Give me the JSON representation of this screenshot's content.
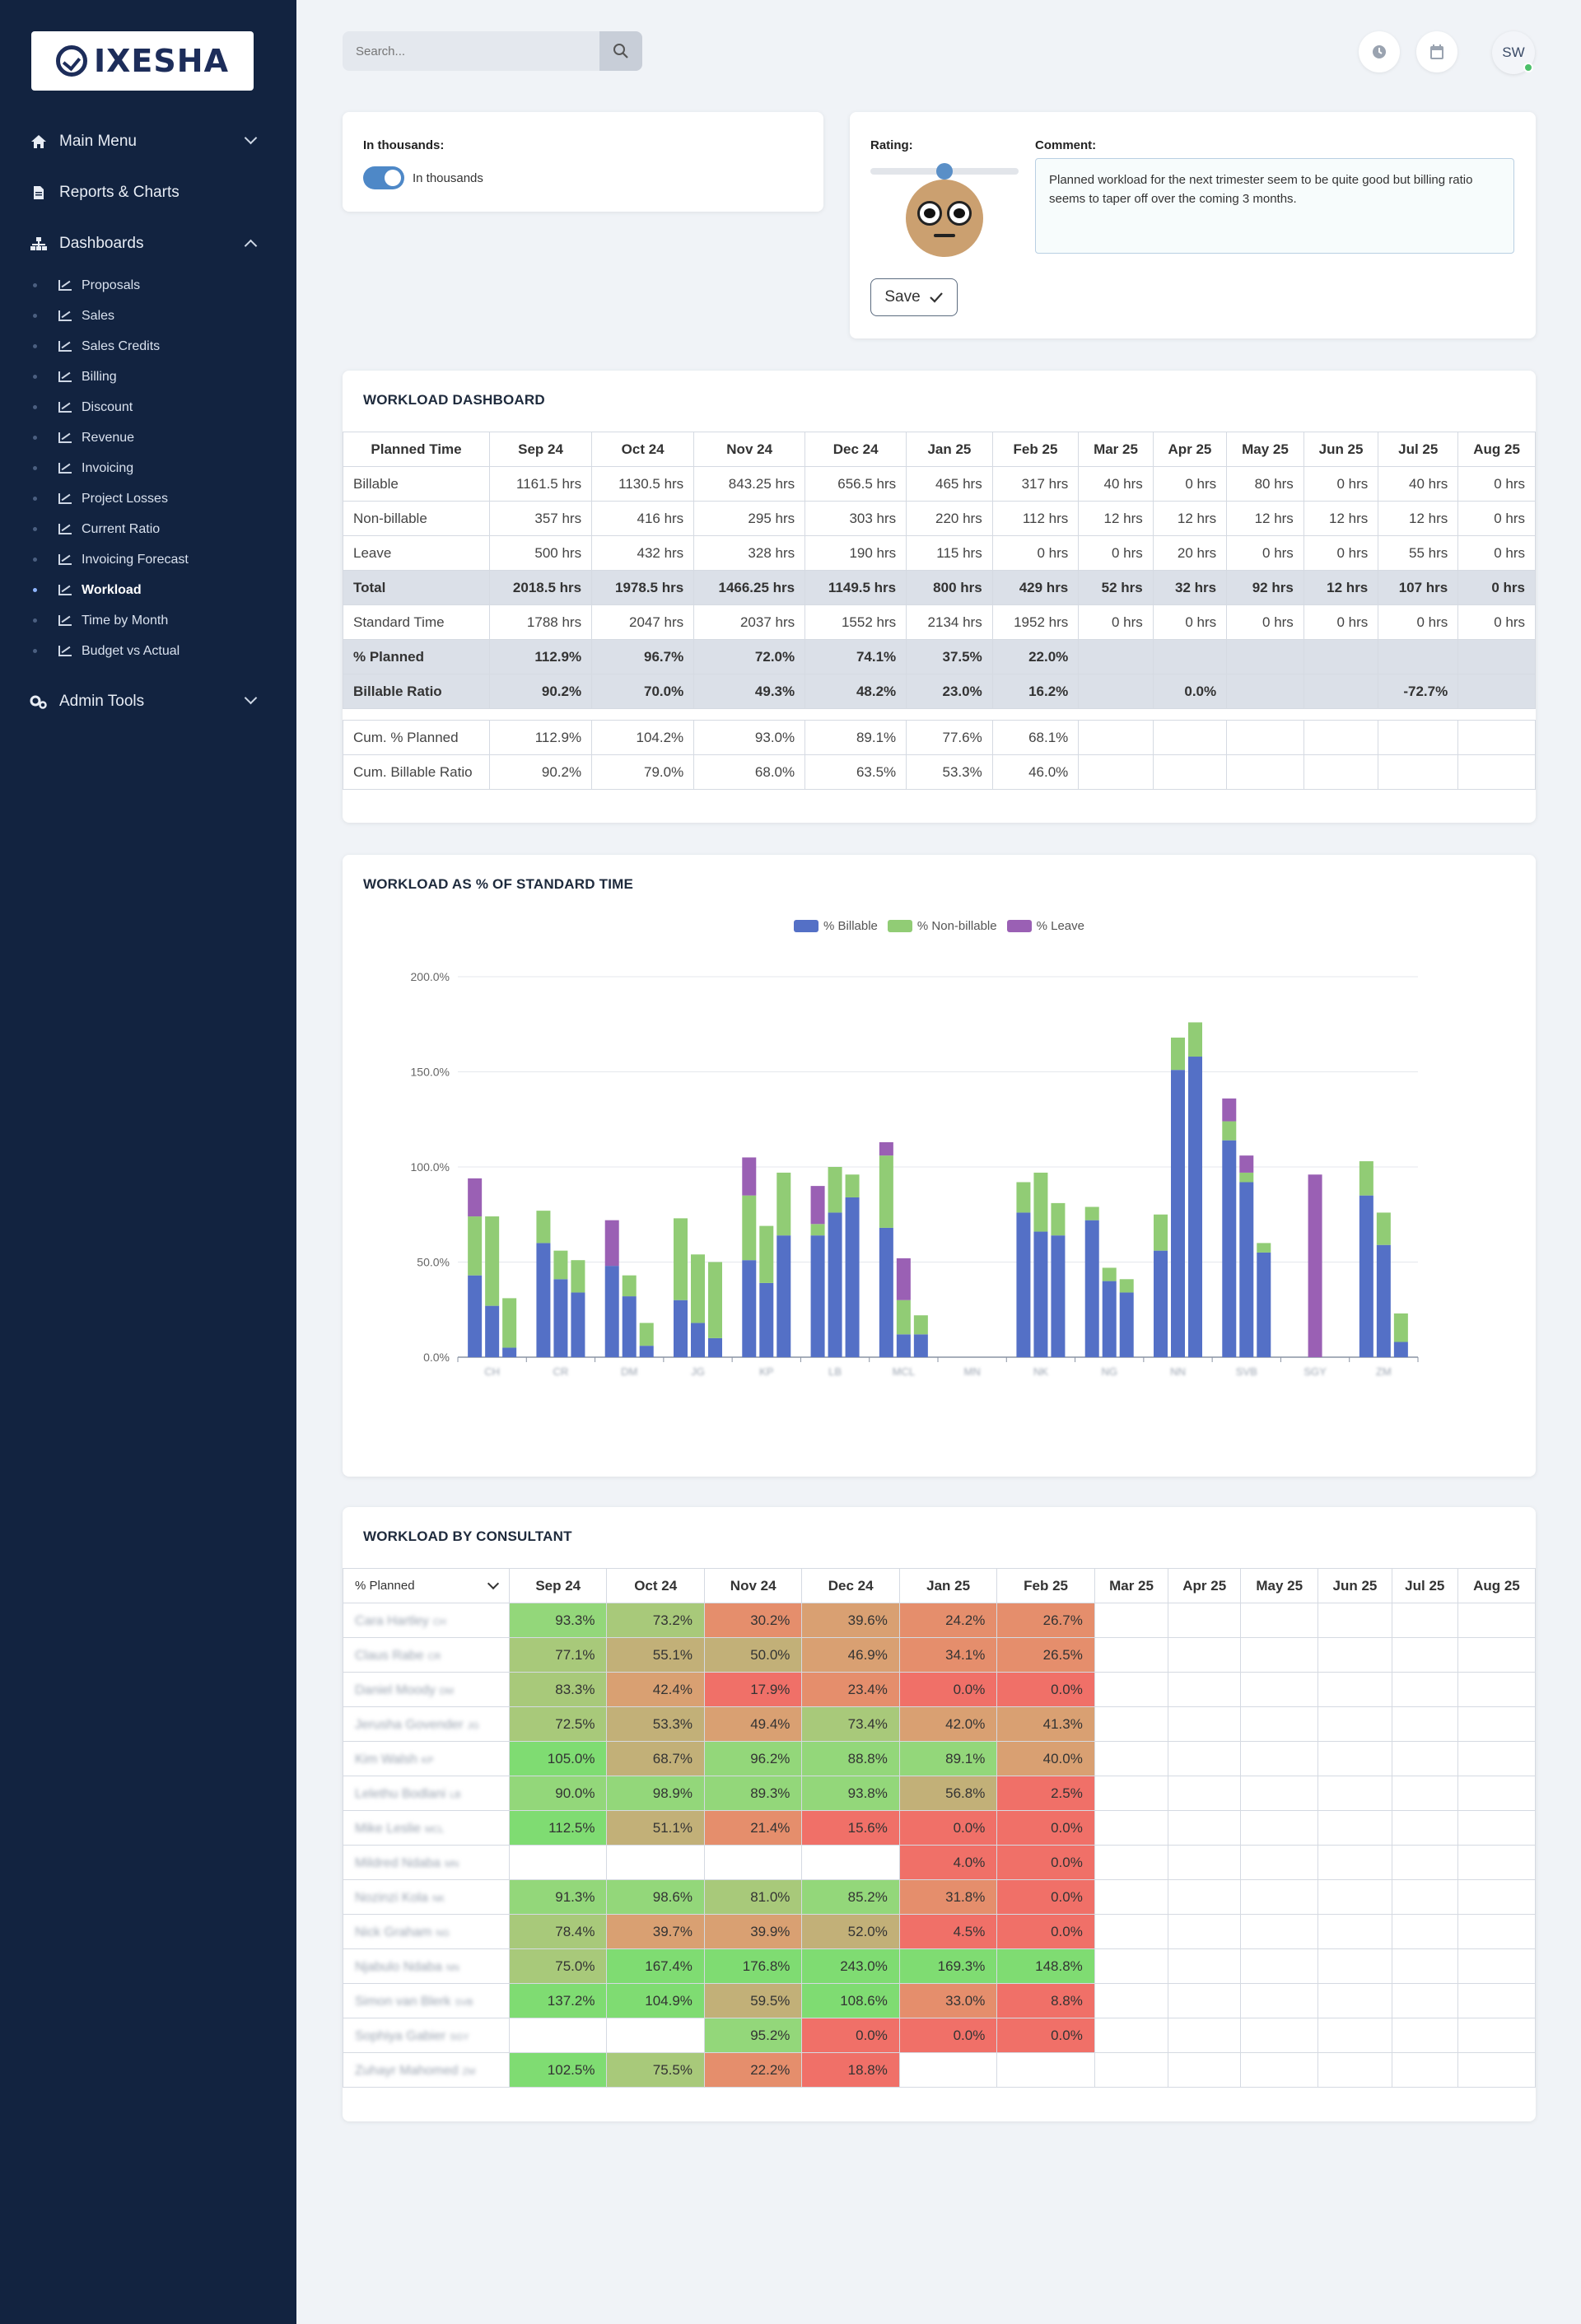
{
  "brand": {
    "name": "IXESHA"
  },
  "sidebar": {
    "groups": [
      {
        "label": "Main Menu",
        "icon": "home-icon"
      },
      {
        "label": "Reports & Charts",
        "icon": "document-icon"
      },
      {
        "label": "Dashboards",
        "icon": "sitemap-icon"
      },
      {
        "label": "Admin Tools",
        "icon": "gears-icon"
      }
    ],
    "dashboards": [
      "Proposals",
      "Sales",
      "Sales Credits",
      "Billing",
      "Discount",
      "Revenue",
      "Invoicing",
      "Project Losses",
      "Current Ratio",
      "Invoicing Forecast",
      "Workload",
      "Time by Month",
      "Budget vs Actual"
    ],
    "active": "Workload"
  },
  "topbar": {
    "search_placeholder": "Search...",
    "avatar_initials": "SW"
  },
  "settings": {
    "label": "In thousands:",
    "toggle_label": "In thousands",
    "toggle_on": true
  },
  "rating": {
    "label": "Rating:",
    "value_fraction": 0.5,
    "comment_label": "Comment:",
    "comment": "Planned workload for the next trimester seem to be quite good but billing ratio seems to taper off over the coming 3 months.",
    "save_label": "Save"
  },
  "workload_dashboard": {
    "title": "WORKLOAD DASHBOARD",
    "corner": "Planned Time",
    "months": [
      "Sep 24",
      "Oct 24",
      "Nov 24",
      "Dec 24",
      "Jan 25",
      "Feb 25",
      "Mar 25",
      "Apr 25",
      "May 25",
      "Jun 25",
      "Jul 25",
      "Aug 25"
    ],
    "rows": [
      {
        "label": "Billable",
        "style": "normal",
        "values": [
          "1161.5 hrs",
          "1130.5 hrs",
          "843.25 hrs",
          "656.5 hrs",
          "465 hrs",
          "317 hrs",
          "40 hrs",
          "0 hrs",
          "80 hrs",
          "0 hrs",
          "40 hrs",
          "0 hrs"
        ]
      },
      {
        "label": "Non-billable",
        "style": "normal",
        "values": [
          "357 hrs",
          "416 hrs",
          "295 hrs",
          "303 hrs",
          "220 hrs",
          "112 hrs",
          "12 hrs",
          "12 hrs",
          "12 hrs",
          "12 hrs",
          "12 hrs",
          "0 hrs"
        ]
      },
      {
        "label": "Leave",
        "style": "normal",
        "values": [
          "500 hrs",
          "432 hrs",
          "328 hrs",
          "190 hrs",
          "115 hrs",
          "0 hrs",
          "0 hrs",
          "20 hrs",
          "0 hrs",
          "0 hrs",
          "55 hrs",
          "0 hrs"
        ]
      },
      {
        "label": "Total",
        "style": "gray",
        "values": [
          "2018.5 hrs",
          "1978.5 hrs",
          "1466.25 hrs",
          "1149.5 hrs",
          "800 hrs",
          "429 hrs",
          "52 hrs",
          "32 hrs",
          "92 hrs",
          "12 hrs",
          "107 hrs",
          "0 hrs"
        ]
      },
      {
        "label": "Standard Time",
        "style": "normal",
        "values": [
          "1788 hrs",
          "2047 hrs",
          "2037 hrs",
          "1552 hrs",
          "2134 hrs",
          "1952 hrs",
          "0 hrs",
          "0 hrs",
          "0 hrs",
          "0 hrs",
          "0 hrs",
          "0 hrs"
        ]
      },
      {
        "label": "% Planned",
        "style": "gray",
        "values": [
          "112.9%",
          "96.7%",
          "72.0%",
          "74.1%",
          "37.5%",
          "22.0%",
          "",
          "",
          "",
          "",
          "",
          ""
        ]
      },
      {
        "label": "Billable Ratio",
        "style": "gray",
        "values": [
          "90.2%",
          "70.0%",
          "49.3%",
          "48.2%",
          "23.0%",
          "16.2%",
          "",
          "0.0%",
          "",
          "",
          "-72.7%",
          ""
        ]
      },
      {
        "label": "",
        "style": "spacer",
        "values": []
      },
      {
        "label": "Cum. % Planned",
        "style": "normal",
        "values": [
          "112.9%",
          "104.2%",
          "93.0%",
          "89.1%",
          "77.6%",
          "68.1%",
          "",
          "",
          "",
          "",
          "",
          ""
        ]
      },
      {
        "label": "Cum. Billable Ratio",
        "style": "normal",
        "values": [
          "90.2%",
          "79.0%",
          "68.0%",
          "63.5%",
          "53.3%",
          "46.0%",
          "",
          "",
          "",
          "",
          "",
          ""
        ]
      }
    ]
  },
  "chart_data": {
    "type": "bar",
    "title": "WORKLOAD AS % OF STANDARD TIME",
    "stacked": true,
    "categories": [
      "CH",
      "CR",
      "DM",
      "JG",
      "KP",
      "LB",
      "MCL",
      "MN",
      "NK",
      "NG",
      "NN",
      "SVB",
      "SGY",
      "ZM"
    ],
    "bars_per_category": 3,
    "series": [
      {
        "name": "% Billable",
        "color": "#5470c6",
        "values": [
          [
            43,
            27,
            5
          ],
          [
            60,
            41,
            34
          ],
          [
            48,
            32,
            6
          ],
          [
            30,
            18,
            10
          ],
          [
            51,
            39,
            64
          ],
          [
            64,
            76,
            84
          ],
          [
            68,
            12,
            12
          ],
          [
            0,
            0,
            0
          ],
          [
            76,
            66,
            64
          ],
          [
            72,
            40,
            34
          ],
          [
            56,
            151,
            158
          ],
          [
            114,
            92,
            55
          ],
          [
            0,
            0,
            0
          ],
          [
            85,
            59,
            8
          ]
        ]
      },
      {
        "name": "% Non-billable",
        "color": "#91cc75",
        "values": [
          [
            31,
            47,
            26
          ],
          [
            17,
            15,
            17
          ],
          [
            0,
            11,
            12
          ],
          [
            43,
            36,
            40
          ],
          [
            34,
            30,
            33
          ],
          [
            6,
            24,
            12
          ],
          [
            38,
            18,
            10
          ],
          [
            0,
            0,
            0
          ],
          [
            16,
            31,
            17
          ],
          [
            7,
            7,
            7
          ],
          [
            19,
            17,
            18
          ],
          [
            10,
            5,
            5
          ],
          [
            0,
            0,
            0
          ],
          [
            18,
            17,
            15
          ]
        ]
      },
      {
        "name": "% Leave",
        "color": "#9a60b4",
        "values": [
          [
            20,
            0,
            0
          ],
          [
            0,
            0,
            0
          ],
          [
            24,
            0,
            0
          ],
          [
            0,
            0,
            0
          ],
          [
            20,
            0,
            0
          ],
          [
            20,
            0,
            0
          ],
          [
            7,
            22,
            0
          ],
          [
            0,
            0,
            0
          ],
          [
            0,
            0,
            0
          ],
          [
            0,
            0,
            0
          ],
          [
            0,
            0,
            0
          ],
          [
            12,
            9,
            0
          ],
          [
            0,
            96,
            0
          ],
          [
            0,
            0,
            0
          ]
        ]
      }
    ],
    "y_ticks": [
      "0.0%",
      "50.0%",
      "100.0%",
      "150.0%",
      "200.0%"
    ],
    "ylim": [
      0,
      200
    ],
    "legend_position": "top-center",
    "grid": true
  },
  "consultants": {
    "title": "WORKLOAD BY CONSULTANT",
    "selector": "% Planned",
    "months": [
      "Sep 24",
      "Oct 24",
      "Nov 24",
      "Dec 24",
      "Jan 25",
      "Feb 25",
      "Mar 25",
      "Apr 25",
      "May 25",
      "Jun 25",
      "Jul 25",
      "Aug 25"
    ],
    "rows": [
      {
        "name": "Cara Hartley",
        "code": "CH",
        "values": [
          93.3,
          73.2,
          30.2,
          39.6,
          24.2,
          26.7
        ],
        "display": [
          "93.3%",
          "73.2%",
          "30.2%",
          "39.6%",
          "24.2%",
          "26.7%"
        ]
      },
      {
        "name": "Claus Rabe",
        "code": "CR",
        "values": [
          77.1,
          55.1,
          50.0,
          46.9,
          34.1,
          26.5
        ],
        "display": [
          "77.1%",
          "55.1%",
          "50.0%",
          "46.9%",
          "34.1%",
          "26.5%"
        ]
      },
      {
        "name": "Daniel Moody",
        "code": "DM",
        "values": [
          83.3,
          42.4,
          17.9,
          23.4,
          0.0,
          0.0
        ],
        "display": [
          "83.3%",
          "42.4%",
          "17.9%",
          "23.4%",
          "0.0%",
          "0.0%"
        ]
      },
      {
        "name": "Jerusha Govender",
        "code": "JG",
        "values": [
          72.5,
          53.3,
          49.4,
          73.4,
          42.0,
          41.3
        ],
        "display": [
          "72.5%",
          "53.3%",
          "49.4%",
          "73.4%",
          "42.0%",
          "41.3%"
        ]
      },
      {
        "name": "Kim Walsh",
        "code": "KP",
        "values": [
          105.0,
          68.7,
          96.2,
          88.8,
          89.1,
          40.0
        ],
        "display": [
          "105.0%",
          "68.7%",
          "96.2%",
          "88.8%",
          "89.1%",
          "40.0%"
        ]
      },
      {
        "name": "Lelethu Bodlani",
        "code": "LB",
        "values": [
          90.0,
          98.9,
          89.3,
          93.8,
          56.8,
          2.5
        ],
        "display": [
          "90.0%",
          "98.9%",
          "89.3%",
          "93.8%",
          "56.8%",
          "2.5%"
        ]
      },
      {
        "name": "Mike Leslie",
        "code": "MCL",
        "values": [
          112.5,
          51.1,
          21.4,
          15.6,
          0.0,
          0.0
        ],
        "display": [
          "112.5%",
          "51.1%",
          "21.4%",
          "15.6%",
          "0.0%",
          "0.0%"
        ]
      },
      {
        "name": "Mildred Ndaba",
        "code": "MN",
        "values": [
          null,
          null,
          null,
          null,
          4.0,
          0.0
        ],
        "display": [
          "",
          "",
          "",
          "",
          "4.0%",
          "0.0%"
        ]
      },
      {
        "name": "Nozinzi Kola",
        "code": "NK",
        "values": [
          91.3,
          98.6,
          81.0,
          85.2,
          31.8,
          0.0
        ],
        "display": [
          "91.3%",
          "98.6%",
          "81.0%",
          "85.2%",
          "31.8%",
          "0.0%"
        ]
      },
      {
        "name": "Nick Graham",
        "code": "NG",
        "values": [
          78.4,
          39.7,
          39.9,
          52.0,
          4.5,
          0.0
        ],
        "display": [
          "78.4%",
          "39.7%",
          "39.9%",
          "52.0%",
          "4.5%",
          "0.0%"
        ]
      },
      {
        "name": "Njabulo Ndaba",
        "code": "NN",
        "values": [
          75.0,
          167.4,
          176.8,
          243.0,
          169.3,
          148.8
        ],
        "display": [
          "75.0%",
          "167.4%",
          "176.8%",
          "243.0%",
          "169.3%",
          "148.8%"
        ]
      },
      {
        "name": "Simon van Blerk",
        "code": "SVB",
        "values": [
          137.2,
          104.9,
          59.5,
          108.6,
          33.0,
          8.8
        ],
        "display": [
          "137.2%",
          "104.9%",
          "59.5%",
          "108.6%",
          "33.0%",
          "8.8%"
        ]
      },
      {
        "name": "Sophiya Gabier",
        "code": "SGY",
        "values": [
          null,
          null,
          95.2,
          0.0,
          0.0,
          0.0
        ],
        "display": [
          "",
          "",
          "95.2%",
          "0.0%",
          "0.0%",
          "0.0%"
        ]
      },
      {
        "name": "Zuhayr Mahomed",
        "code": "ZM",
        "values": [
          102.5,
          75.5,
          22.2,
          18.8,
          null,
          null
        ],
        "display": [
          "102.5%",
          "75.5%",
          "22.2%",
          "18.8%",
          "",
          ""
        ]
      }
    ],
    "colors": {
      "high": "#7fd36e",
      "mid": "#d9a57a",
      "low": "#ef6b66"
    }
  }
}
